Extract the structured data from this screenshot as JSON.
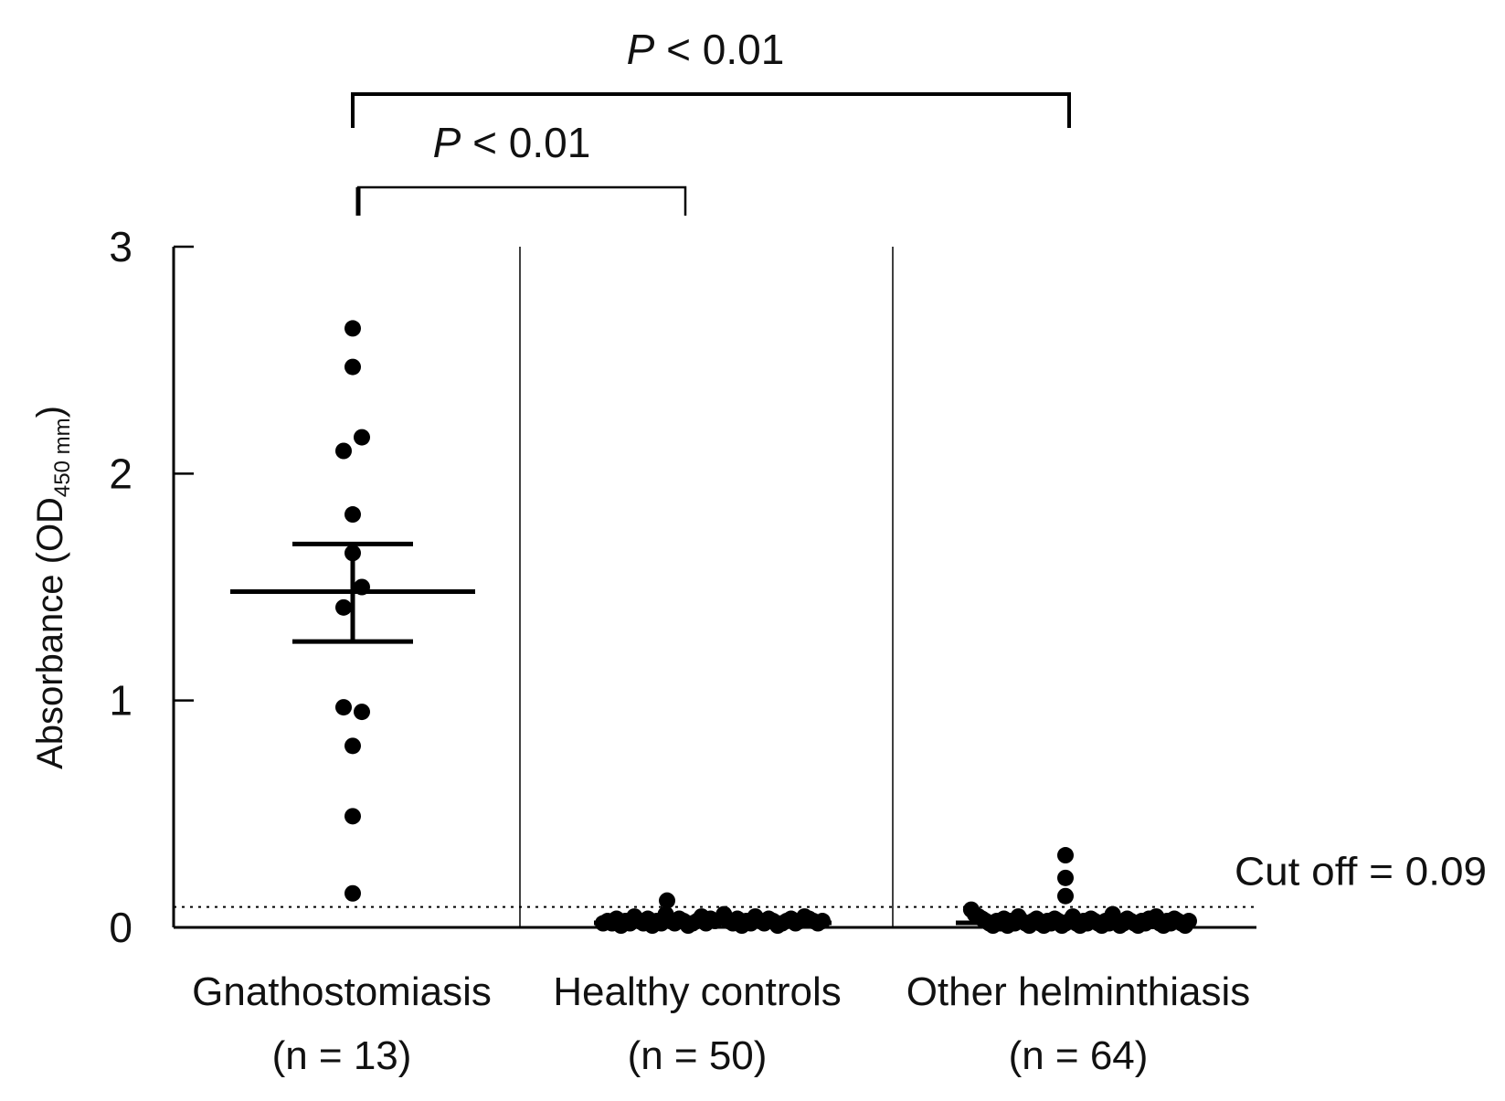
{
  "chart_data": {
    "type": "scatter",
    "ylabel": {
      "main": "Absorbance (OD",
      "subscript": "450 mm",
      "close": ")"
    },
    "ylim": [
      0,
      3
    ],
    "yticks": [
      "0",
      "1",
      "2",
      "3"
    ],
    "groups": [
      {
        "label": "Gnathostomiasis",
        "n_label": "(n = 13)",
        "values": [
          2.64,
          2.47,
          2.16,
          2.1,
          1.82,
          1.65,
          1.5,
          1.41,
          0.97,
          0.95,
          0.8,
          0.49,
          0.15
        ],
        "mean": 1.48,
        "error_upper": 1.69,
        "error_lower": 1.26
      },
      {
        "label": "Healthy controls",
        "n_label": "(n = 50)",
        "values": [
          0.01,
          0.02,
          0.01,
          0.03,
          0.0,
          0.02,
          0.01,
          0.04,
          0.02,
          0.01,
          0.03,
          0.0,
          0.02,
          0.01,
          0.05,
          0.02,
          0.01,
          0.03,
          0.02,
          0.0,
          0.01,
          0.02,
          0.04,
          0.01,
          0.03,
          0.02,
          0.11,
          0.05,
          0.02,
          0.01,
          0.03,
          0.0,
          0.02,
          0.01,
          0.04,
          0.02,
          0.01,
          0.03,
          0.02,
          0.0,
          0.01,
          0.02,
          0.03,
          0.01,
          0.02,
          0.04,
          0.03,
          0.02,
          0.01,
          0.02
        ],
        "mean": 0.02
      },
      {
        "label": "Other helminthiasis",
        "n_label": "(n = 64)",
        "values": [
          0.31,
          0.21,
          0.13,
          0.07,
          0.05,
          0.04,
          0.03,
          0.02,
          0.01,
          0.0,
          0.02,
          0.01,
          0.03,
          0.0,
          0.02,
          0.01,
          0.04,
          0.02,
          0.01,
          0.0,
          0.02,
          0.03,
          0.01,
          0.0,
          0.02,
          0.01,
          0.03,
          0.02,
          0.0,
          0.01,
          0.02,
          0.04,
          0.01,
          0.0,
          0.02,
          0.01,
          0.03,
          0.02,
          0.01,
          0.0,
          0.02,
          0.01,
          0.05,
          0.02,
          0.0,
          0.01,
          0.03,
          0.02,
          0.01,
          0.0,
          0.02,
          0.01,
          0.03,
          0.02,
          0.04,
          0.01,
          0.0,
          0.02,
          0.01,
          0.03,
          0.02,
          0.01,
          0.0,
          0.02
        ],
        "mean": 0.02
      }
    ],
    "cutoff": {
      "value": 0.09,
      "label": "Cut off = 0.09"
    },
    "significance": [
      {
        "from_group": 0,
        "to_group": 1,
        "label_italic": "P",
        "label_rest": " < 0.01"
      },
      {
        "from_group": 0,
        "to_group": 2,
        "label_italic": "P",
        "label_rest": " < 0.01"
      }
    ]
  }
}
